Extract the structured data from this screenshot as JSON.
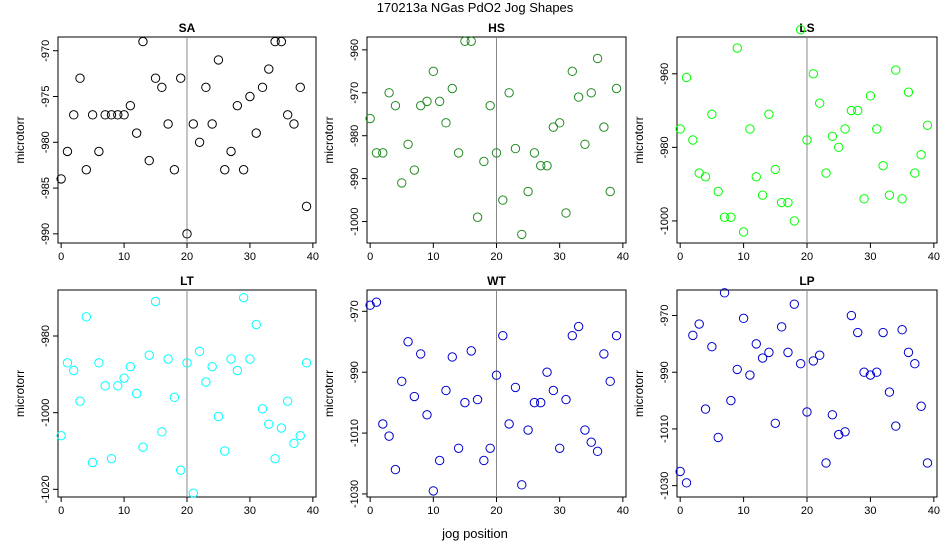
{
  "figure": {
    "title": "170213a   NGas PdO2 Jog Shapes",
    "xlabel": "jog position"
  },
  "chart_data": [
    {
      "type": "scatter",
      "title": "SA",
      "ylabel": "microtorr",
      "color": "#000000",
      "xlim": [
        -0.5,
        40.5
      ],
      "ylim": [
        -991,
        -968.5
      ],
      "xticks": [
        0,
        10,
        20,
        30,
        40
      ],
      "yticks": [
        -990,
        -985,
        -980,
        -975,
        -970
      ],
      "vline": 20,
      "x": [
        0,
        1,
        2,
        3,
        4,
        5,
        6,
        7,
        8,
        9,
        10,
        11,
        12,
        13,
        14,
        15,
        16,
        17,
        18,
        19,
        20,
        21,
        22,
        23,
        24,
        25,
        26,
        27,
        28,
        29,
        30,
        31,
        32,
        33,
        34,
        35,
        36,
        37,
        38,
        39
      ],
      "y": [
        -984,
        -981,
        -977,
        -973,
        -983,
        -977,
        -981,
        -977,
        -977,
        -977,
        -977,
        -976,
        -979,
        -969,
        -982,
        -973,
        -974,
        -978,
        -983,
        -973,
        -990,
        -978,
        -980,
        -974,
        -978,
        -971,
        -983,
        -981,
        -976,
        -983,
        -975,
        -979,
        -974,
        -972,
        -969,
        -969,
        -977,
        -978,
        -974,
        -987
      ]
    },
    {
      "type": "scatter",
      "title": "HS",
      "ylabel": "microtorr",
      "color": "#228b22",
      "xlim": [
        -0.5,
        40.5
      ],
      "ylim": [
        -1005,
        -957
      ],
      "xticks": [
        0,
        10,
        20,
        30,
        40
      ],
      "yticks": [
        -1000,
        -990,
        -980,
        -970,
        -960
      ],
      "vline": 20,
      "x": [
        0,
        1,
        2,
        3,
        4,
        5,
        6,
        7,
        8,
        9,
        10,
        11,
        12,
        13,
        14,
        15,
        16,
        17,
        18,
        19,
        20,
        21,
        22,
        23,
        24,
        25,
        26,
        27,
        28,
        29,
        30,
        31,
        32,
        33,
        34,
        35,
        36,
        37,
        38,
        39
      ],
      "y": [
        -976,
        -984,
        -984,
        -970,
        -973,
        -991,
        -982,
        -988,
        -973,
        -972,
        -965,
        -972,
        -977,
        -969,
        -984,
        -958,
        -958,
        -999,
        -986,
        -973,
        -984,
        -995,
        -970,
        -983,
        -1003,
        -993,
        -984,
        -987,
        -987,
        -978,
        -977,
        -998,
        -965,
        -971,
        -982,
        -970,
        -962,
        -978,
        -993,
        -969
      ]
    },
    {
      "type": "scatter",
      "title": "LS",
      "ylabel": "microtorr",
      "color": "#00ff00",
      "xlim": [
        -0.5,
        40.5
      ],
      "ylim": [
        -1006,
        -950
      ],
      "xticks": [
        0,
        10,
        20,
        30,
        40
      ],
      "yticks": [
        -1000,
        -980,
        -960
      ],
      "vline": 20,
      "x": [
        0,
        1,
        2,
        3,
        4,
        5,
        6,
        7,
        8,
        9,
        10,
        11,
        12,
        13,
        14,
        15,
        16,
        17,
        18,
        19,
        20,
        21,
        22,
        23,
        24,
        25,
        26,
        27,
        28,
        29,
        30,
        31,
        32,
        33,
        34,
        35,
        36,
        37,
        38,
        39
      ],
      "y": [
        -975,
        -961,
        -978,
        -987,
        -988,
        -971,
        -992,
        -999,
        -999,
        -953,
        -1003,
        -975,
        -988,
        -993,
        -971,
        -986,
        -995,
        -995,
        -1000,
        -948,
        -978,
        -960,
        -968,
        -987,
        -977,
        -980,
        -975,
        -970,
        -970,
        -994,
        -966,
        -975,
        -985,
        -993,
        -959,
        -994,
        -965,
        -987,
        -982,
        -974
      ]
    },
    {
      "type": "scatter",
      "title": "LT",
      "ylabel": "microtorr",
      "color": "#00ffff",
      "xlim": [
        -0.5,
        40.5
      ],
      "ylim": [
        -1022,
        -968
      ],
      "xticks": [
        0,
        10,
        20,
        30,
        40
      ],
      "yticks": [
        -1020,
        -1000,
        -980
      ],
      "vline": 20,
      "x": [
        0,
        1,
        2,
        3,
        4,
        5,
        6,
        7,
        8,
        9,
        10,
        11,
        12,
        13,
        14,
        15,
        16,
        17,
        18,
        19,
        20,
        21,
        22,
        23,
        24,
        25,
        26,
        27,
        28,
        29,
        30,
        31,
        32,
        33,
        34,
        35,
        36,
        37,
        38,
        39
      ],
      "y": [
        -1006,
        -987,
        -989,
        -997,
        -975,
        -1013,
        -987,
        -993,
        -1012,
        -993,
        -991,
        -988,
        -995,
        -1009,
        -985,
        -971,
        -1005,
        -986,
        -996,
        -1015,
        -987,
        -1021,
        -984,
        -992,
        -988,
        -1001,
        -1010,
        -986,
        -989,
        -970,
        -986,
        -977,
        -999,
        -1003,
        -1012,
        -1004,
        -997,
        -1008,
        -1006,
        -987
      ]
    },
    {
      "type": "scatter",
      "title": "WT",
      "ylabel": "microtorr",
      "color": "#0000cd",
      "xlim": [
        -0.5,
        40.5
      ],
      "ylim": [
        -1031,
        -963
      ],
      "xticks": [
        0,
        10,
        20,
        30,
        40
      ],
      "yticks": [
        -1030,
        -1010,
        -990,
        -970
      ],
      "vline": 20,
      "x": [
        0,
        1,
        2,
        3,
        4,
        5,
        6,
        7,
        8,
        9,
        10,
        11,
        12,
        13,
        14,
        15,
        16,
        17,
        18,
        19,
        20,
        21,
        22,
        23,
        24,
        25,
        26,
        27,
        28,
        29,
        30,
        31,
        32,
        33,
        34,
        35,
        36,
        37,
        38,
        39
      ],
      "y": [
        -968,
        -967,
        -1007,
        -1011,
        -1022,
        -993,
        -980,
        -998,
        -984,
        -1004,
        -1029,
        -1019,
        -996,
        -985,
        -1015,
        -1000,
        -983,
        -999,
        -1019,
        -1015,
        -991,
        -978,
        -1007,
        -995,
        -1027,
        -1009,
        -1000,
        -1000,
        -990,
        -996,
        -1015,
        -999,
        -978,
        -975,
        -1009,
        -1013,
        -1016,
        -984,
        -993,
        -978
      ]
    },
    {
      "type": "scatter",
      "title": "LP",
      "ylabel": "microtorr",
      "color": "#0000cd",
      "xlim": [
        -0.5,
        40.5
      ],
      "ylim": [
        -1034,
        -961
      ],
      "xticks": [
        0,
        10,
        20,
        30,
        40
      ],
      "yticks": [
        -1030,
        -1010,
        -990,
        -970
      ],
      "vline": 20,
      "x": [
        0,
        1,
        2,
        3,
        4,
        5,
        6,
        7,
        8,
        9,
        10,
        11,
        12,
        13,
        14,
        15,
        16,
        17,
        18,
        19,
        20,
        21,
        22,
        23,
        24,
        25,
        26,
        27,
        28,
        29,
        30,
        31,
        32,
        33,
        34,
        35,
        36,
        37,
        38,
        39
      ],
      "y": [
        -1025,
        -1029,
        -977,
        -973,
        -1003,
        -981,
        -1013,
        -962,
        -1000,
        -989,
        -971,
        -991,
        -980,
        -985,
        -983,
        -1008,
        -974,
        -983,
        -966,
        -987,
        -1004,
        -986,
        -984,
        -1022,
        -1005,
        -1012,
        -1011,
        -970,
        -976,
        -990,
        -991,
        -990,
        -976,
        -997,
        -1009,
        -975,
        -983,
        -987,
        -1002,
        -1022
      ]
    }
  ]
}
